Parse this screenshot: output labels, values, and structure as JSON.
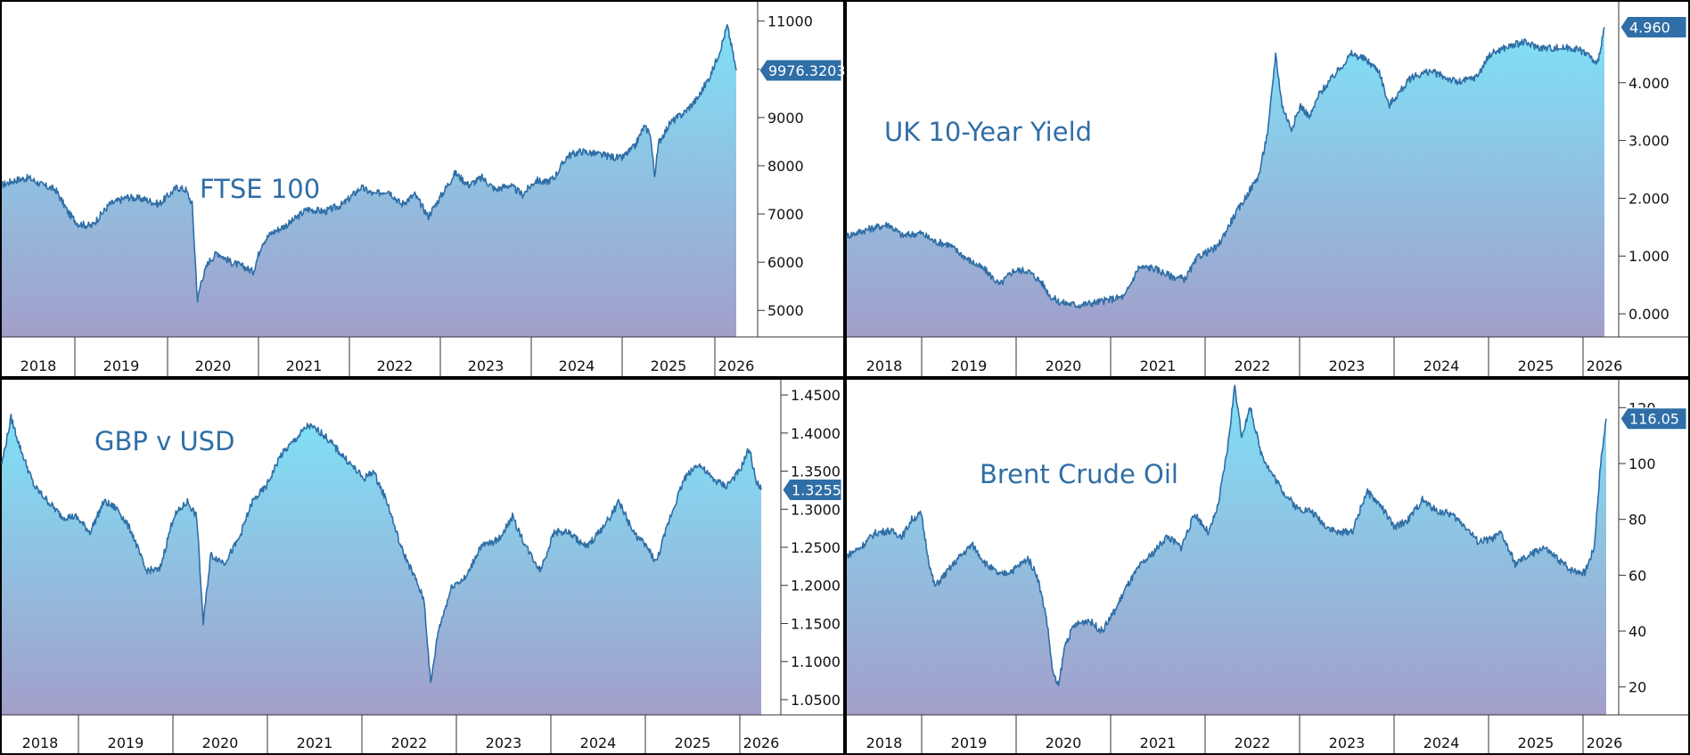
{
  "chart_data": [
    {
      "type": "area",
      "title": "FTSE 100",
      "x_labels": [
        "2018",
        "2019",
        "2020",
        "2021",
        "2022",
        "2023",
        "2024",
        "2025",
        "2026"
      ],
      "y_ticks": [
        5000,
        6000,
        7000,
        8000,
        9000,
        10000,
        11000
      ],
      "y_tick_labels": [
        "5000",
        "6000",
        "7000",
        "8000",
        "9000",
        "10000",
        "11000"
      ],
      "ylim": [
        4450,
        11400
      ],
      "last_value": 9976.3203,
      "last_label": "9976.3203",
      "series": [
        [
          2018.0,
          7600
        ],
        [
          2018.15,
          7700
        ],
        [
          2018.3,
          7750
        ],
        [
          2018.45,
          7600
        ],
        [
          2018.6,
          7500
        ],
        [
          2018.75,
          7000
        ],
        [
          2018.85,
          6800
        ],
        [
          2019.0,
          6750
        ],
        [
          2019.2,
          7200
        ],
        [
          2019.4,
          7350
        ],
        [
          2019.6,
          7300
        ],
        [
          2019.75,
          7200
        ],
        [
          2019.95,
          7550
        ],
        [
          2020.05,
          7500
        ],
        [
          2020.12,
          7200
        ],
        [
          2020.18,
          5200
        ],
        [
          2020.22,
          5600
        ],
        [
          2020.3,
          6000
        ],
        [
          2020.4,
          6200
        ],
        [
          2020.55,
          6000
        ],
        [
          2020.7,
          5900
        ],
        [
          2020.8,
          5800
        ],
        [
          2020.9,
          6400
        ],
        [
          2021.0,
          6600
        ],
        [
          2021.2,
          6800
        ],
        [
          2021.4,
          7100
        ],
        [
          2021.6,
          7050
        ],
        [
          2021.8,
          7200
        ],
        [
          2022.0,
          7550
        ],
        [
          2022.15,
          7400
        ],
        [
          2022.3,
          7500
        ],
        [
          2022.45,
          7200
        ],
        [
          2022.6,
          7400
        ],
        [
          2022.75,
          6950
        ],
        [
          2022.9,
          7400
        ],
        [
          2023.05,
          7850
        ],
        [
          2023.2,
          7600
        ],
        [
          2023.35,
          7750
        ],
        [
          2023.5,
          7500
        ],
        [
          2023.65,
          7600
        ],
        [
          2023.8,
          7400
        ],
        [
          2023.95,
          7700
        ],
        [
          2024.05,
          7650
        ],
        [
          2024.15,
          7750
        ],
        [
          2024.3,
          8200
        ],
        [
          2024.45,
          8300
        ],
        [
          2024.6,
          8250
        ],
        [
          2024.75,
          8200
        ],
        [
          2024.9,
          8150
        ],
        [
          2025.05,
          8400
        ],
        [
          2025.15,
          8800
        ],
        [
          2025.22,
          8700
        ],
        [
          2025.27,
          7800
        ],
        [
          2025.32,
          8500
        ],
        [
          2025.45,
          8900
        ],
        [
          2025.6,
          9100
        ],
        [
          2025.75,
          9400
        ],
        [
          2025.9,
          9900
        ],
        [
          2026.0,
          10400
        ],
        [
          2026.08,
          10900
        ],
        [
          2026.12,
          10550
        ],
        [
          2026.18,
          9976
        ]
      ]
    },
    {
      "type": "area",
      "title": "UK 10-Year Yield",
      "x_labels": [
        "2018",
        "2019",
        "2020",
        "2021",
        "2022",
        "2023",
        "2024",
        "2025",
        "2026"
      ],
      "y_ticks": [
        0,
        1,
        2,
        3,
        4
      ],
      "y_tick_labels": [
        "0.000",
        "1.000",
        "2.000",
        "3.000",
        "4.000"
      ],
      "ylim": [
        -0.4,
        5.4
      ],
      "last_value": 4.96,
      "last_label": "4.960",
      "series": [
        [
          2018.0,
          1.35
        ],
        [
          2018.2,
          1.45
        ],
        [
          2018.45,
          1.55
        ],
        [
          2018.6,
          1.35
        ],
        [
          2018.8,
          1.4
        ],
        [
          2018.95,
          1.25
        ],
        [
          2019.1,
          1.2
        ],
        [
          2019.3,
          0.95
        ],
        [
          2019.5,
          0.75
        ],
        [
          2019.65,
          0.5
        ],
        [
          2019.8,
          0.75
        ],
        [
          2019.95,
          0.75
        ],
        [
          2020.1,
          0.55
        ],
        [
          2020.2,
          0.3
        ],
        [
          2020.3,
          0.2
        ],
        [
          2020.5,
          0.15
        ],
        [
          2020.7,
          0.2
        ],
        [
          2020.85,
          0.25
        ],
        [
          2021.0,
          0.3
        ],
        [
          2021.15,
          0.8
        ],
        [
          2021.3,
          0.8
        ],
        [
          2021.5,
          0.65
        ],
        [
          2021.65,
          0.6
        ],
        [
          2021.8,
          1.0
        ],
        [
          2022.0,
          1.15
        ],
        [
          2022.15,
          1.6
        ],
        [
          2022.3,
          2.0
        ],
        [
          2022.45,
          2.4
        ],
        [
          2022.55,
          3.2
        ],
        [
          2022.63,
          4.5
        ],
        [
          2022.7,
          3.6
        ],
        [
          2022.8,
          3.2
        ],
        [
          2022.9,
          3.6
        ],
        [
          2023.0,
          3.4
        ],
        [
          2023.1,
          3.8
        ],
        [
          2023.25,
          4.1
        ],
        [
          2023.45,
          4.5
        ],
        [
          2023.6,
          4.4
        ],
        [
          2023.75,
          4.2
        ],
        [
          2023.85,
          3.6
        ],
        [
          2023.95,
          3.8
        ],
        [
          2024.1,
          4.1
        ],
        [
          2024.3,
          4.2
        ],
        [
          2024.45,
          4.1
        ],
        [
          2024.6,
          4.0
        ],
        [
          2024.8,
          4.1
        ],
        [
          2024.95,
          4.5
        ],
        [
          2025.1,
          4.6
        ],
        [
          2025.3,
          4.7
        ],
        [
          2025.5,
          4.6
        ],
        [
          2025.7,
          4.6
        ],
        [
          2025.85,
          4.6
        ],
        [
          2026.0,
          4.5
        ],
        [
          2026.1,
          4.3
        ],
        [
          2026.18,
          4.96
        ]
      ]
    },
    {
      "type": "area",
      "title": "GBP v USD",
      "x_labels": [
        "2018",
        "2019",
        "2020",
        "2021",
        "2022",
        "2023",
        "2024",
        "2025",
        "2026"
      ],
      "y_ticks": [
        1.05,
        1.1,
        1.15,
        1.2,
        1.25,
        1.3,
        1.35,
        1.4,
        1.45
      ],
      "y_tick_labels": [
        "1.0500",
        "1.1000",
        "1.1500",
        "1.2000",
        "1.2500",
        "1.3000",
        "1.3500",
        "1.4000",
        "1.4500"
      ],
      "ylim": [
        1.03,
        1.47
      ],
      "last_value": 1.3255,
      "last_label": "1.3255",
      "series": [
        [
          2018.0,
          1.36
        ],
        [
          2018.1,
          1.42
        ],
        [
          2018.2,
          1.38
        ],
        [
          2018.35,
          1.33
        ],
        [
          2018.5,
          1.31
        ],
        [
          2018.65,
          1.29
        ],
        [
          2018.8,
          1.29
        ],
        [
          2018.95,
          1.27
        ],
        [
          2019.1,
          1.31
        ],
        [
          2019.25,
          1.3
        ],
        [
          2019.4,
          1.27
        ],
        [
          2019.55,
          1.22
        ],
        [
          2019.7,
          1.22
        ],
        [
          2019.85,
          1.29
        ],
        [
          2020.0,
          1.31
        ],
        [
          2020.1,
          1.29
        ],
        [
          2020.17,
          1.15
        ],
        [
          2020.25,
          1.24
        ],
        [
          2020.4,
          1.23
        ],
        [
          2020.55,
          1.26
        ],
        [
          2020.7,
          1.31
        ],
        [
          2020.85,
          1.33
        ],
        [
          2021.0,
          1.37
        ],
        [
          2021.15,
          1.39
        ],
        [
          2021.3,
          1.41
        ],
        [
          2021.45,
          1.4
        ],
        [
          2021.6,
          1.38
        ],
        [
          2021.75,
          1.36
        ],
        [
          2021.9,
          1.34
        ],
        [
          2022.0,
          1.35
        ],
        [
          2022.15,
          1.31
        ],
        [
          2022.3,
          1.25
        ],
        [
          2022.45,
          1.21
        ],
        [
          2022.55,
          1.18
        ],
        [
          2022.62,
          1.07
        ],
        [
          2022.7,
          1.14
        ],
        [
          2022.85,
          1.2
        ],
        [
          2023.0,
          1.21
        ],
        [
          2023.15,
          1.25
        ],
        [
          2023.35,
          1.26
        ],
        [
          2023.5,
          1.29
        ],
        [
          2023.65,
          1.25
        ],
        [
          2023.8,
          1.22
        ],
        [
          2023.95,
          1.27
        ],
        [
          2024.1,
          1.27
        ],
        [
          2024.3,
          1.25
        ],
        [
          2024.5,
          1.28
        ],
        [
          2024.65,
          1.31
        ],
        [
          2024.8,
          1.27
        ],
        [
          2024.95,
          1.25
        ],
        [
          2025.05,
          1.23
        ],
        [
          2025.2,
          1.29
        ],
        [
          2025.35,
          1.34
        ],
        [
          2025.5,
          1.36
        ],
        [
          2025.65,
          1.34
        ],
        [
          2025.8,
          1.33
        ],
        [
          2025.95,
          1.35
        ],
        [
          2026.05,
          1.38
        ],
        [
          2026.12,
          1.34
        ],
        [
          2026.18,
          1.3255
        ]
      ]
    },
    {
      "type": "area",
      "title": "Brent Crude Oil",
      "x_labels": [
        "2018",
        "2019",
        "2020",
        "2021",
        "2022",
        "2023",
        "2024",
        "2025",
        "2026"
      ],
      "y_ticks": [
        20,
        40,
        60,
        80,
        100,
        120
      ],
      "y_tick_labels": [
        "20",
        "40",
        "60",
        "80",
        "100",
        "120"
      ],
      "ylim": [
        10,
        130
      ],
      "last_value": 116.05,
      "last_label": "116.05",
      "series": [
        [
          2018.0,
          67
        ],
        [
          2018.15,
          70
        ],
        [
          2018.3,
          75
        ],
        [
          2018.45,
          76
        ],
        [
          2018.6,
          74
        ],
        [
          2018.7,
          80
        ],
        [
          2018.8,
          82
        ],
        [
          2018.9,
          62
        ],
        [
          2018.95,
          56
        ],
        [
          2019.05,
          60
        ],
        [
          2019.2,
          66
        ],
        [
          2019.35,
          71
        ],
        [
          2019.5,
          64
        ],
        [
          2019.65,
          60
        ],
        [
          2019.8,
          62
        ],
        [
          2019.95,
          66
        ],
        [
          2020.05,
          60
        ],
        [
          2020.15,
          45
        ],
        [
          2020.22,
          25
        ],
        [
          2020.28,
          20
        ],
        [
          2020.35,
          35
        ],
        [
          2020.45,
          42
        ],
        [
          2020.6,
          44
        ],
        [
          2020.75,
          40
        ],
        [
          2020.9,
          48
        ],
        [
          2021.0,
          55
        ],
        [
          2021.15,
          63
        ],
        [
          2021.3,
          68
        ],
        [
          2021.45,
          74
        ],
        [
          2021.6,
          70
        ],
        [
          2021.75,
          82
        ],
        [
          2021.9,
          75
        ],
        [
          2022.0,
          85
        ],
        [
          2022.1,
          105
        ],
        [
          2022.18,
          128
        ],
        [
          2022.25,
          110
        ],
        [
          2022.35,
          120
        ],
        [
          2022.45,
          105
        ],
        [
          2022.55,
          98
        ],
        [
          2022.7,
          90
        ],
        [
          2022.85,
          84
        ],
        [
          2023.0,
          83
        ],
        [
          2023.15,
          78
        ],
        [
          2023.3,
          75
        ],
        [
          2023.45,
          76
        ],
        [
          2023.6,
          90
        ],
        [
          2023.75,
          85
        ],
        [
          2023.9,
          77
        ],
        [
          2024.05,
          80
        ],
        [
          2024.2,
          87
        ],
        [
          2024.35,
          83
        ],
        [
          2024.5,
          82
        ],
        [
          2024.65,
          78
        ],
        [
          2024.8,
          72
        ],
        [
          2024.95,
          73
        ],
        [
          2025.05,
          75
        ],
        [
          2025.2,
          64
        ],
        [
          2025.35,
          67
        ],
        [
          2025.5,
          70
        ],
        [
          2025.65,
          66
        ],
        [
          2025.8,
          62
        ],
        [
          2025.95,
          61
        ],
        [
          2026.05,
          70
        ],
        [
          2026.12,
          100
        ],
        [
          2026.18,
          116.05
        ]
      ]
    }
  ]
}
